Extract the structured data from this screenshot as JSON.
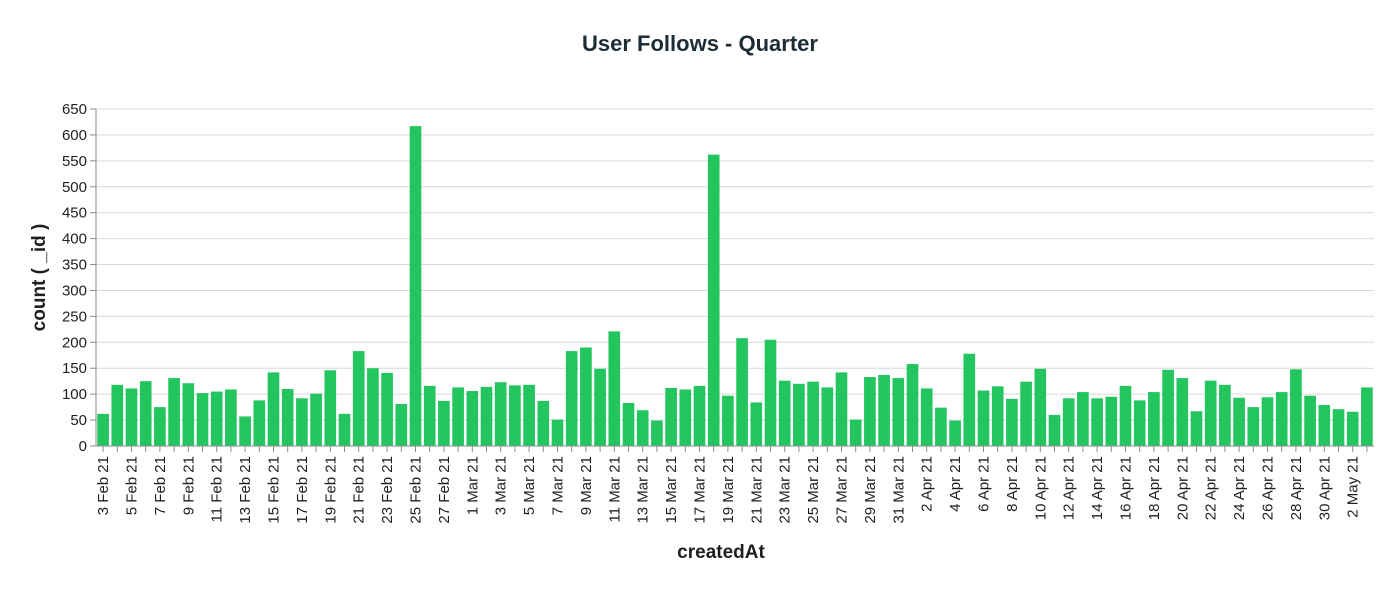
{
  "chart_data": {
    "type": "bar",
    "title": "User Follows - Quarter",
    "xlabel": "createdAt",
    "ylabel": "count ( _id )",
    "ylim": [
      0,
      650
    ],
    "y_ticks": [
      0,
      50,
      100,
      150,
      200,
      250,
      300,
      350,
      400,
      450,
      500,
      550,
      600,
      650
    ],
    "grid": true,
    "bar_color": "#22c55e",
    "categories": [
      "3 Feb 21",
      "4 Feb 21",
      "5 Feb 21",
      "6 Feb 21",
      "7 Feb 21",
      "8 Feb 21",
      "9 Feb 21",
      "10 Feb 21",
      "11 Feb 21",
      "12 Feb 21",
      "13 Feb 21",
      "14 Feb 21",
      "15 Feb 21",
      "16 Feb 21",
      "17 Feb 21",
      "18 Feb 21",
      "19 Feb 21",
      "20 Feb 21",
      "21 Feb 21",
      "22 Feb 21",
      "23 Feb 21",
      "24 Feb 21",
      "25 Feb 21",
      "26 Feb 21",
      "27 Feb 21",
      "28 Feb 21",
      "1 Mar 21",
      "2 Mar 21",
      "3 Mar 21",
      "4 Mar 21",
      "5 Mar 21",
      "6 Mar 21",
      "7 Mar 21",
      "8 Mar 21",
      "9 Mar 21",
      "10 Mar 21",
      "11 Mar 21",
      "12 Mar 21",
      "13 Mar 21",
      "14 Mar 21",
      "15 Mar 21",
      "16 Mar 21",
      "17 Mar 21",
      "18 Mar 21",
      "19 Mar 21",
      "20 Mar 21",
      "21 Mar 21",
      "22 Mar 21",
      "23 Mar 21",
      "24 Mar 21",
      "25 Mar 21",
      "26 Mar 21",
      "27 Mar 21",
      "28 Mar 21",
      "29 Mar 21",
      "30 Mar 21",
      "31 Mar 21",
      "1 Apr 21",
      "2 Apr 21",
      "3 Apr 21",
      "4 Apr 21",
      "5 Apr 21",
      "6 Apr 21",
      "7 Apr 21",
      "8 Apr 21",
      "9 Apr 21",
      "10 Apr 21",
      "11 Apr 21",
      "12 Apr 21",
      "13 Apr 21",
      "14 Apr 21",
      "15 Apr 21",
      "16 Apr 21",
      "17 Apr 21",
      "18 Apr 21",
      "19 Apr 21",
      "20 Apr 21",
      "21 Apr 21",
      "22 Apr 21",
      "23 Apr 21",
      "24 Apr 21",
      "25 Apr 21",
      "26 Apr 21",
      "27 Apr 21",
      "28 Apr 21",
      "29 Apr 21",
      "30 Apr 21",
      "1 May 21",
      "2 May 21",
      "3 May 21"
    ],
    "values": [
      62,
      118,
      111,
      125,
      75,
      131,
      121,
      102,
      105,
      109,
      57,
      88,
      142,
      110,
      92,
      101,
      146,
      62,
      183,
      150,
      141,
      81,
      617,
      116,
      87,
      113,
      106,
      114,
      123,
      117,
      118,
      87,
      51,
      183,
      190,
      149,
      221,
      83,
      69,
      49,
      112,
      109,
      116,
      562,
      97,
      208,
      84,
      205,
      126,
      120,
      124,
      113,
      142,
      51,
      133,
      137,
      131,
      158,
      111,
      74,
      49,
      178,
      107,
      115,
      91,
      124,
      149,
      60,
      92,
      104,
      92,
      95,
      116,
      88,
      104,
      147,
      131,
      67,
      126,
      118,
      93,
      75,
      94,
      104,
      148,
      97,
      79,
      71,
      66,
      113
    ],
    "x_tick_labels": [
      "3 Feb 21",
      "5 Feb 21",
      "7 Feb 21",
      "9 Feb 21",
      "11 Feb 21",
      "13 Feb 21",
      "15 Feb 21",
      "17 Feb 21",
      "19 Feb 21",
      "21 Feb 21",
      "23 Feb 21",
      "25 Feb 21",
      "27 Feb 21",
      "1 Mar 21",
      "3 Mar 21",
      "5 Mar 21",
      "7 Mar 21",
      "9 Mar 21",
      "11 Mar 21",
      "13 Mar 21",
      "15 Mar 21",
      "17 Mar 21",
      "19 Mar 21",
      "21 Mar 21",
      "23 Mar 21",
      "25 Mar 21",
      "27 Mar 21",
      "29 Mar 21",
      "31 Mar 21",
      "2 Apr 21",
      "4 Apr 21",
      "6 Apr 21",
      "8 Apr 21",
      "10 Apr 21",
      "12 Apr 21",
      "14 Apr 21",
      "16 Apr 21",
      "18 Apr 21",
      "20 Apr 21",
      "22 Apr 21",
      "24 Apr 21",
      "26 Apr 21",
      "28 Apr 21",
      "30 Apr 21",
      "2 May 21"
    ]
  }
}
